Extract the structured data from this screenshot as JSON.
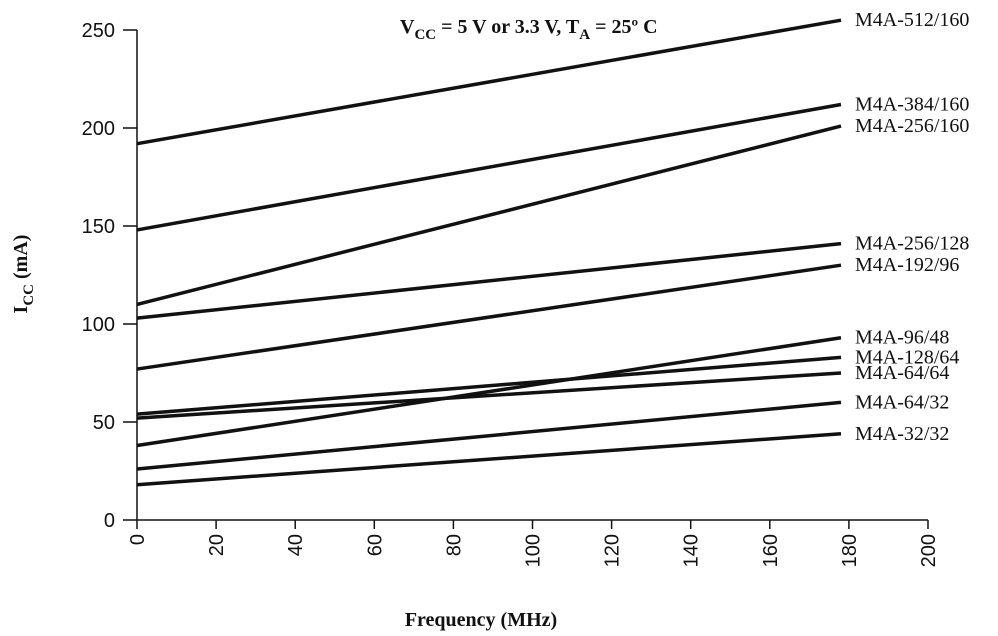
{
  "chart_data": {
    "type": "line",
    "title": "",
    "annotation": {
      "v_main": "V",
      "v_sub": "CC",
      "middle": " = 5 V or 3.3 V, T",
      "t_sub": "A",
      "tail": " = 25º C"
    },
    "xlabel": "Frequency (MHz)",
    "ylabel": {
      "main": "I",
      "sub": "CC",
      "unit": " (mA)"
    },
    "xlim": [
      0,
      200
    ],
    "ylim": [
      0,
      250
    ],
    "x_ticks": [
      "0",
      "20",
      "40",
      "60",
      "80",
      "100",
      "120",
      "140",
      "160",
      "180",
      "200"
    ],
    "y_ticks": [
      "0",
      "50",
      "100",
      "150",
      "200",
      "250"
    ],
    "grid": false,
    "legend": "inline-right",
    "series": [
      {
        "name": "M4A-512/160",
        "x": [
          0,
          178
        ],
        "y": [
          192,
          255
        ]
      },
      {
        "name": "M4A-384/160",
        "x": [
          0,
          178
        ],
        "y": [
          148,
          212
        ]
      },
      {
        "name": "M4A-256/160",
        "x": [
          0,
          178
        ],
        "y": [
          110,
          201
        ]
      },
      {
        "name": "M4A-256/128",
        "x": [
          0,
          178
        ],
        "y": [
          103,
          141
        ]
      },
      {
        "name": "M4A-192/96",
        "x": [
          0,
          178
        ],
        "y": [
          77,
          130
        ]
      },
      {
        "name": "M4A-96/48",
        "x": [
          0,
          178
        ],
        "y": [
          38,
          93
        ]
      },
      {
        "name": "M4A-128/64",
        "x": [
          0,
          178
        ],
        "y": [
          54,
          83
        ]
      },
      {
        "name": "M4A-64/64",
        "x": [
          0,
          178
        ],
        "y": [
          52,
          75
        ]
      },
      {
        "name": "M4A-64/32",
        "x": [
          0,
          178
        ],
        "y": [
          26,
          60
        ]
      },
      {
        "name": "M4A-32/32",
        "x": [
          0,
          178
        ],
        "y": [
          18,
          44
        ]
      }
    ],
    "line_color": "#111111"
  }
}
